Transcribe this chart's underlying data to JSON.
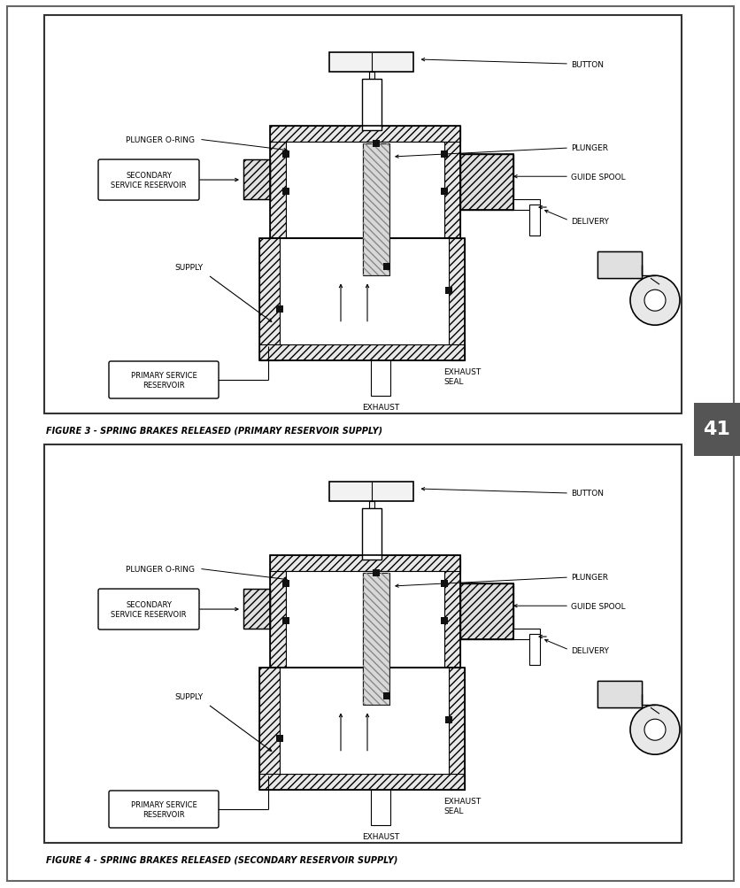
{
  "page_bg": "#ffffff",
  "border_color": "#444444",
  "line_color": "#000000",
  "text_color": "#000000",
  "figure3_caption": "FIGURE 3 - SPRING BRAKES RELEASED (PRIMARY RESERVOIR SUPPLY)",
  "figure4_caption": "FIGURE 4 - SPRING BRAKES RELEASED (SECONDARY RESERVOIR SUPPLY)",
  "tab_label": "41",
  "fs_label": 6.5,
  "fs_caption": 7.0
}
